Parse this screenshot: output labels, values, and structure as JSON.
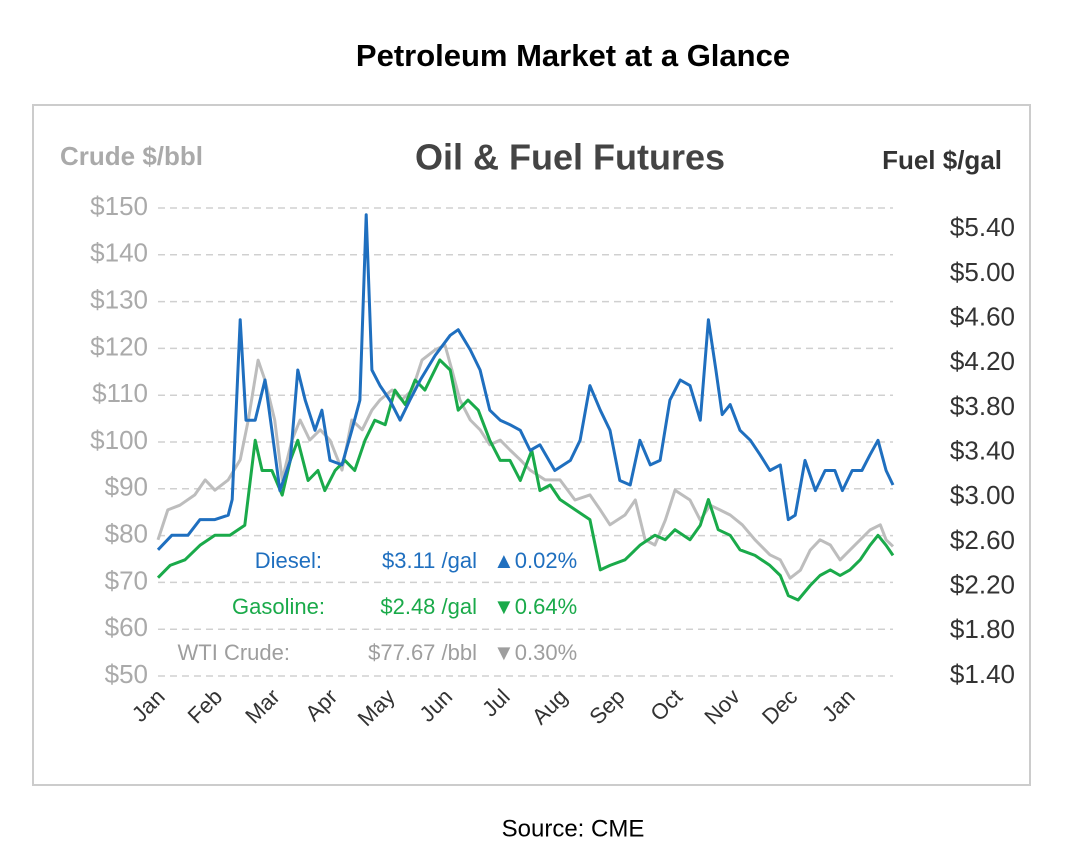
{
  "title": "Petroleum Market at a Glance",
  "source": "Source: CME",
  "chart_data": {
    "type": "line",
    "title": "Oil & Fuel Futures",
    "y_label": "Crude $/bbl",
    "y2_label": "Fuel $/gal",
    "xlim": [
      0,
      12.78
    ],
    "xticks": [
      {
        "value": 0,
        "label": "Jan"
      },
      {
        "value": 1,
        "label": "Feb"
      },
      {
        "value": 2,
        "label": "Mar"
      },
      {
        "value": 3,
        "label": "Apr"
      },
      {
        "value": 4,
        "label": "May"
      },
      {
        "value": 5,
        "label": "Jun"
      },
      {
        "value": 6,
        "label": "Jul"
      },
      {
        "value": 7,
        "label": "Aug"
      },
      {
        "value": 8,
        "label": "Sep"
      },
      {
        "value": 9,
        "label": "Oct"
      },
      {
        "value": 10,
        "label": "Nov"
      },
      {
        "value": 11,
        "label": "Dec"
      },
      {
        "value": 12,
        "label": "Jan"
      }
    ],
    "ylim": [
      50,
      150
    ],
    "yticks": [
      {
        "value": 50,
        "label": "$50"
      },
      {
        "value": 60,
        "label": "$60"
      },
      {
        "value": 70,
        "label": "$70"
      },
      {
        "value": 80,
        "label": "$80"
      },
      {
        "value": 90,
        "label": "$90"
      },
      {
        "value": 100,
        "label": "$100"
      },
      {
        "value": 110,
        "label": "$110"
      },
      {
        "value": 120,
        "label": "$120"
      },
      {
        "value": 130,
        "label": "$130"
      },
      {
        "value": 140,
        "label": "$140"
      },
      {
        "value": 150,
        "label": "$150"
      }
    ],
    "y2lim": [
      1.4,
      5.59
    ],
    "y2ticks": [
      {
        "value": 1.4,
        "label": "$1.40"
      },
      {
        "value": 1.8,
        "label": "$1.80"
      },
      {
        "value": 2.2,
        "label": "$2.20"
      },
      {
        "value": 2.6,
        "label": "$2.60"
      },
      {
        "value": 3.0,
        "label": "$3.00"
      },
      {
        "value": 3.4,
        "label": "$3.40"
      },
      {
        "value": 3.8,
        "label": "$3.80"
      },
      {
        "value": 4.2,
        "label": "$4.20"
      },
      {
        "value": 4.6,
        "label": "$4.60"
      },
      {
        "value": 5.0,
        "label": "$5.00"
      },
      {
        "value": 5.4,
        "label": "$5.40"
      }
    ],
    "grid": true,
    "series": [
      {
        "name": "Diesel",
        "color": "#1f6fbf",
        "axis": "y2",
        "x": [
          0,
          0.24,
          0.52,
          0.73,
          0.99,
          1.22,
          1.29,
          1.43,
          1.53,
          1.69,
          1.86,
          1.98,
          2.12,
          2.3,
          2.43,
          2.56,
          2.73,
          2.85,
          2.99,
          3.2,
          3.37,
          3.51,
          3.62,
          3.72,
          3.86,
          4.03,
          4.21,
          4.38,
          4.56,
          4.82,
          5.08,
          5.22,
          5.43,
          5.6,
          5.77,
          5.95,
          6.12,
          6.3,
          6.47,
          6.64,
          6.9,
          7.17,
          7.34,
          7.51,
          7.69,
          7.86,
          8.03,
          8.21,
          8.38,
          8.56,
          8.73,
          8.9,
          9.08,
          9.25,
          9.43,
          9.57,
          9.7,
          9.81,
          9.95,
          10.12,
          10.3,
          10.47,
          10.64,
          10.82,
          10.96,
          11.08,
          11.25,
          11.43,
          11.6,
          11.77,
          11.9,
          12.07,
          12.24,
          12.38,
          12.52,
          12.66,
          12.78
        ],
        "values": [
          2.53,
          2.66,
          2.66,
          2.8,
          2.8,
          2.84,
          2.98,
          4.59,
          3.69,
          3.69,
          4.05,
          3.6,
          3.06,
          3.33,
          4.14,
          3.87,
          3.6,
          3.78,
          3.33,
          3.29,
          3.6,
          3.87,
          5.53,
          4.14,
          4.0,
          3.87,
          3.69,
          3.87,
          4.05,
          4.27,
          4.45,
          4.5,
          4.32,
          4.14,
          3.78,
          3.69,
          3.65,
          3.6,
          3.42,
          3.47,
          3.24,
          3.33,
          3.51,
          4.0,
          3.78,
          3.6,
          3.15,
          3.11,
          3.51,
          3.29,
          3.33,
          3.87,
          4.05,
          4.0,
          3.69,
          4.59,
          4.14,
          3.74,
          3.83,
          3.6,
          3.51,
          3.38,
          3.24,
          3.29,
          2.8,
          2.84,
          3.33,
          3.06,
          3.24,
          3.24,
          3.06,
          3.24,
          3.24,
          3.38,
          3.51,
          3.24,
          3.11
        ]
      },
      {
        "name": "Gasoline",
        "color": "#1aaa4a",
        "axis": "y2",
        "x": [
          0,
          0.21,
          0.47,
          0.73,
          0.99,
          1.25,
          1.51,
          1.69,
          1.81,
          1.98,
          2.16,
          2.3,
          2.43,
          2.61,
          2.78,
          2.9,
          3.08,
          3.25,
          3.42,
          3.6,
          3.77,
          3.95,
          4.12,
          4.3,
          4.47,
          4.64,
          4.9,
          5.08,
          5.22,
          5.39,
          5.57,
          5.77,
          5.95,
          6.12,
          6.3,
          6.5,
          6.64,
          6.82,
          6.99,
          7.25,
          7.51,
          7.69,
          7.86,
          8.12,
          8.38,
          8.64,
          8.82,
          8.99,
          9.25,
          9.43,
          9.57,
          9.74,
          9.95,
          10.12,
          10.38,
          10.64,
          10.82,
          10.96,
          11.13,
          11.34,
          11.51,
          11.69,
          11.86,
          12.03,
          12.21,
          12.38,
          12.52,
          12.66,
          12.78
        ],
        "values": [
          2.28,
          2.39,
          2.44,
          2.57,
          2.66,
          2.66,
          2.75,
          3.51,
          3.24,
          3.24,
          3.02,
          3.33,
          3.51,
          3.15,
          3.24,
          3.06,
          3.24,
          3.33,
          3.24,
          3.51,
          3.69,
          3.65,
          3.96,
          3.83,
          4.05,
          3.96,
          4.23,
          4.14,
          3.78,
          3.87,
          3.78,
          3.51,
          3.33,
          3.33,
          3.15,
          3.42,
          3.06,
          3.11,
          2.98,
          2.89,
          2.8,
          2.35,
          2.39,
          2.44,
          2.57,
          2.66,
          2.62,
          2.71,
          2.62,
          2.75,
          2.98,
          2.71,
          2.66,
          2.53,
          2.48,
          2.39,
          2.3,
          2.12,
          2.08,
          2.21,
          2.3,
          2.35,
          2.3,
          2.35,
          2.44,
          2.57,
          2.66,
          2.57,
          2.48
        ]
      },
      {
        "name": "WTI Crude",
        "color": "#bdbdbd",
        "axis": "y",
        "x": [
          0,
          0.17,
          0.38,
          0.64,
          0.82,
          0.99,
          1.22,
          1.43,
          1.57,
          1.74,
          1.86,
          2.03,
          2.16,
          2.33,
          2.47,
          2.64,
          2.82,
          2.99,
          3.2,
          3.37,
          3.55,
          3.72,
          3.86,
          4.07,
          4.24,
          4.42,
          4.59,
          4.82,
          4.99,
          5.11,
          5.25,
          5.43,
          5.6,
          5.77,
          5.95,
          6.12,
          6.3,
          6.47,
          6.73,
          6.99,
          7.25,
          7.51,
          7.69,
          7.86,
          8.12,
          8.3,
          8.47,
          8.64,
          8.82,
          8.99,
          9.25,
          9.43,
          9.6,
          9.77,
          9.95,
          10.16,
          10.38,
          10.64,
          10.82,
          10.99,
          11.17,
          11.34,
          11.51,
          11.69,
          11.86,
          12.03,
          12.21,
          12.38,
          12.56,
          12.66,
          12.78
        ],
        "values": [
          79.1,
          85.5,
          86.5,
          88.7,
          91.9,
          89.7,
          91.9,
          96.2,
          104.7,
          117.5,
          113.2,
          104.7,
          91.9,
          100.4,
          104.7,
          100.4,
          102.6,
          100.4,
          94.0,
          104.7,
          102.6,
          106.8,
          109.0,
          111.1,
          109.0,
          111.1,
          117.5,
          119.7,
          120.7,
          115.4,
          109.0,
          104.7,
          102.6,
          99.4,
          100.4,
          98.3,
          96.2,
          94.0,
          91.9,
          91.9,
          87.6,
          88.7,
          85.5,
          82.3,
          84.4,
          87.6,
          79.1,
          78.0,
          83.3,
          89.7,
          87.6,
          83.3,
          86.5,
          85.5,
          84.4,
          82.3,
          79.1,
          75.9,
          74.8,
          70.9,
          72.6,
          76.9,
          79.1,
          78.0,
          74.8,
          76.9,
          79.1,
          81.2,
          82.3,
          79.1,
          77.7
        ]
      }
    ],
    "annotations": [
      {
        "label": "Diesel:",
        "price": "$3.11 /gal",
        "change": "▲0.02%",
        "color": "#1f6fbf"
      },
      {
        "label": "Gasoline:",
        "price": "$2.48 /gal",
        "change": "▼0.64%",
        "color": "#1aaa4a"
      },
      {
        "label": "WTI Crude:",
        "price": "$77.67 /bbl",
        "change": "▼0.30%",
        "color": "#9e9e9e"
      }
    ]
  }
}
